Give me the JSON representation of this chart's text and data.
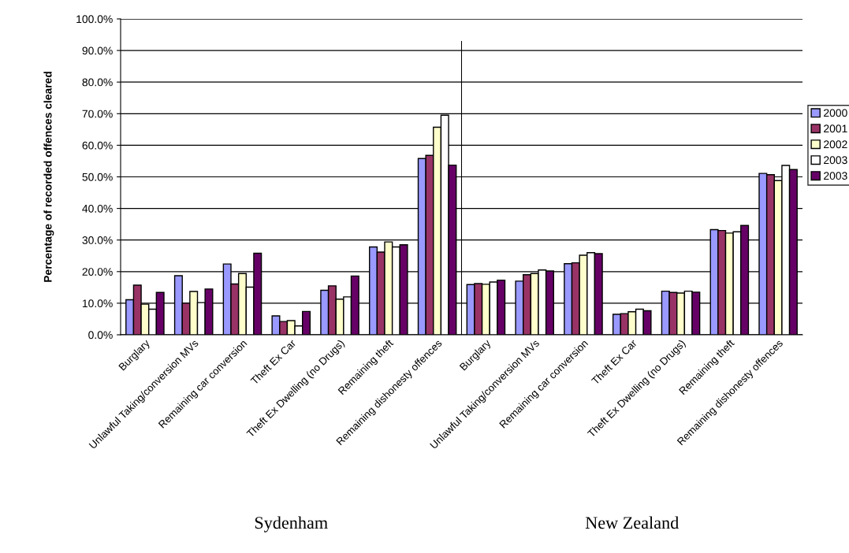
{
  "chart_data": {
    "type": "bar",
    "ylabel": "Percentage of recorded offences cleared",
    "categories": [
      "Burglary",
      "Unlawful Taking/conversion MVs",
      "Remaining car conversion",
      "Theft Ex Car",
      "Theft Ex Dwelling (no Drugs)",
      "Remaining theft",
      "Remaining dishonesty offences",
      "Burglary",
      "Unlawful Taking/conversion MVs",
      "Remaining car conversion",
      "Theft Ex Car",
      "Theft Ex Dwelling (no Drugs)",
      "Remaining theft",
      "Remaining dishonesty offences"
    ],
    "series": [
      {
        "name": "2000",
        "color": "#9999ff",
        "values": [
          11.1,
          18.7,
          22.4,
          6.0,
          14.1,
          27.8,
          55.8,
          15.9,
          17.0,
          22.5,
          6.5,
          13.8,
          33.3,
          51.1
        ]
      },
      {
        "name": "2001",
        "color": "#993366",
        "values": [
          15.7,
          10.0,
          16.1,
          4.2,
          15.5,
          26.2,
          56.8,
          16.2,
          19.0,
          22.8,
          6.7,
          13.4,
          33.0,
          50.7
        ]
      },
      {
        "name": "2002",
        "color": "#ffffcc",
        "values": [
          9.7,
          13.7,
          19.4,
          4.5,
          11.3,
          29.4,
          65.7,
          16.0,
          19.4,
          25.2,
          7.3,
          13.2,
          32.2,
          48.8
        ]
      },
      {
        "name": "2003",
        "color": "#ffffff",
        "values": [
          8.1,
          10.2,
          15.1,
          2.8,
          12.0,
          27.8,
          69.5,
          16.7,
          20.5,
          26.0,
          8.1,
          13.8,
          32.6,
          53.6
        ]
      },
      {
        "name": "2003",
        "color": "#660066",
        "values": [
          13.4,
          14.5,
          25.8,
          7.4,
          18.6,
          28.5,
          53.7,
          17.3,
          20.2,
          25.7,
          7.6,
          13.5,
          34.6,
          52.3
        ]
      }
    ],
    "ylim": [
      0,
      100
    ],
    "yticks": [
      {
        "value": 0,
        "label": "0.0%"
      },
      {
        "value": 10,
        "label": "10.0%"
      },
      {
        "value": 20,
        "label": "20.0%"
      },
      {
        "value": 30,
        "label": "30.0%"
      },
      {
        "value": 40,
        "label": "40.0%"
      },
      {
        "value": 50,
        "label": "50.0%"
      },
      {
        "value": 60,
        "label": "60.0%"
      },
      {
        "value": 70,
        "label": "70.0%"
      },
      {
        "value": 80,
        "label": "80.0%"
      },
      {
        "value": 90,
        "label": "90.0%"
      },
      {
        "value": 100,
        "label": "100.0%"
      }
    ],
    "grid": "y",
    "legend": "right",
    "annotations": [
      "Sydenham",
      "New Zealand"
    ]
  }
}
